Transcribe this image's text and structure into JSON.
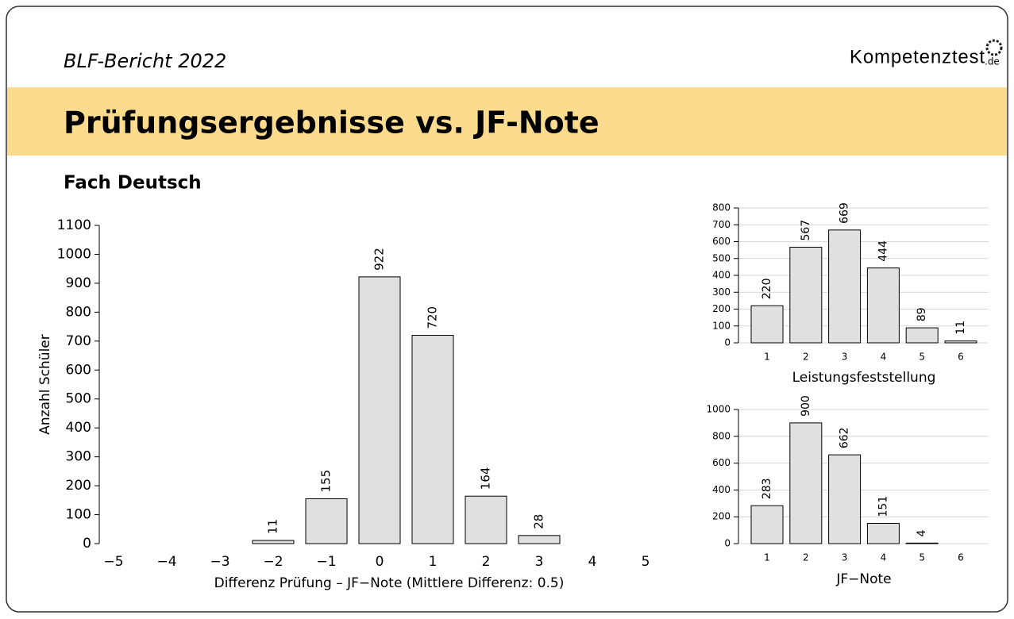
{
  "header": {
    "report": "BLF-Bericht 2022",
    "logo": "Kompetenztest",
    "logo_suffix": ".de",
    "title": "Prüfungsergebnisse vs. JF-Note",
    "subtitle": "Fach Deutsch"
  },
  "chart_data": [
    {
      "type": "bar",
      "categories": [
        "−5",
        "−4",
        "−3",
        "−2",
        "−1",
        "0",
        "1",
        "2",
        "3",
        "4",
        "5"
      ],
      "values": [
        null,
        null,
        null,
        11,
        155,
        922,
        720,
        164,
        28,
        null,
        null
      ],
      "color": "#e0e0e0",
      "ylim": [
        0,
        1100
      ],
      "yticks": [
        0,
        100,
        200,
        300,
        400,
        500,
        600,
        700,
        800,
        900,
        1000,
        1100
      ],
      "xlabel": "Differenz Prüfung – JF−Note (Mittlere Differenz: 0.5)",
      "ylabel": "Anzahl Schüler",
      "grid": false
    },
    {
      "type": "bar",
      "categories": [
        "1",
        "2",
        "3",
        "4",
        "5",
        "6"
      ],
      "values": [
        220,
        567,
        669,
        444,
        89,
        11
      ],
      "color": "#e0e0e0",
      "ylim": [
        0,
        800
      ],
      "yticks": [
        0,
        100,
        200,
        300,
        400,
        500,
        600,
        700,
        800
      ],
      "xlabel": "Leistungsfeststellung",
      "grid": true
    },
    {
      "type": "bar",
      "categories": [
        "1",
        "2",
        "3",
        "4",
        "5",
        "6"
      ],
      "values": [
        283,
        900,
        662,
        151,
        4,
        null
      ],
      "color": "#e0e0e0",
      "ylim": [
        0,
        1000
      ],
      "yticks": [
        0,
        200,
        400,
        600,
        800,
        1000
      ],
      "xlabel": "JF−Note",
      "grid": true
    }
  ]
}
